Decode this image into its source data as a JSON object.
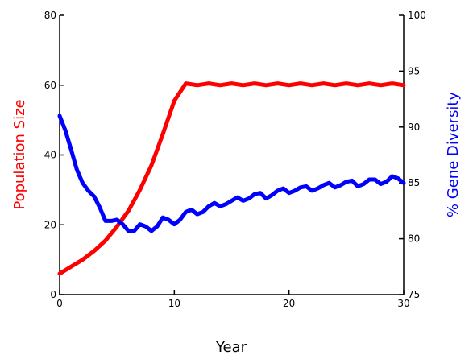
{
  "chart_data": {
    "type": "line",
    "title": "",
    "xlabel": "Year",
    "ylabel": "Population Size",
    "y2label": "% Gene Diversity",
    "xlim": [
      0,
      30
    ],
    "ylim": [
      0,
      80
    ],
    "y2lim": [
      75,
      100
    ],
    "xticks": [
      0,
      10,
      20,
      30
    ],
    "yticks": [
      0,
      20,
      40,
      60,
      80
    ],
    "y2ticks": [
      75,
      80,
      85,
      90,
      95,
      100
    ],
    "grid": false,
    "legend": "none",
    "series": [
      {
        "axis": "left",
        "color": "#ff0000",
        "x": [
          0,
          1,
          2,
          3,
          4,
          5,
          6,
          7,
          8,
          9,
          10,
          11,
          12,
          13,
          14,
          15,
          16,
          17,
          18,
          19,
          20,
          21,
          22,
          23,
          24,
          25,
          26,
          27,
          28,
          29,
          30
        ],
        "values": [
          6,
          8,
          10,
          12.5,
          15.5,
          19.5,
          24,
          30,
          37,
          46,
          55.5,
          60.5,
          60,
          60.5,
          60,
          60.5,
          60,
          60.5,
          60,
          60.5,
          60,
          60.5,
          60,
          60.5,
          60,
          60.5,
          60,
          60.5,
          60,
          60.5,
          60
        ]
      },
      {
        "axis": "right",
        "color": "#0000ff",
        "x": [
          0,
          0.5,
          1,
          1.5,
          2,
          2.5,
          3,
          3.5,
          4,
          4.5,
          5,
          5.5,
          6,
          6.5,
          7,
          7.5,
          8,
          8.5,
          9,
          9.5,
          10,
          10.5,
          11,
          11.5,
          12,
          12.5,
          13,
          13.5,
          14,
          14.5,
          15,
          15.5,
          16,
          16.5,
          17,
          17.5,
          18,
          18.5,
          19,
          19.5,
          20,
          20.5,
          21,
          21.5,
          22,
          22.5,
          23,
          23.5,
          24,
          24.5,
          25,
          25.5,
          26,
          26.5,
          27,
          27.5,
          28,
          28.5,
          29,
          29.5,
          30
        ],
        "values": [
          91,
          89.7,
          88,
          86.2,
          85,
          84.3,
          83.8,
          82.8,
          81.6,
          81.6,
          81.7,
          81.3,
          80.7,
          80.7,
          81.3,
          81.1,
          80.7,
          81.1,
          81.9,
          81.7,
          81.3,
          81.7,
          82.4,
          82.6,
          82.2,
          82.4,
          82.9,
          83.2,
          82.9,
          83.1,
          83.4,
          83.7,
          83.4,
          83.6,
          84,
          84.1,
          83.6,
          83.9,
          84.3,
          84.5,
          84.1,
          84.3,
          84.6,
          84.7,
          84.3,
          84.5,
          84.8,
          85,
          84.6,
          84.8,
          85.1,
          85.2,
          84.7,
          84.9,
          85.3,
          85.3,
          84.9,
          85.1,
          85.6,
          85.4,
          85
        ]
      }
    ]
  }
}
